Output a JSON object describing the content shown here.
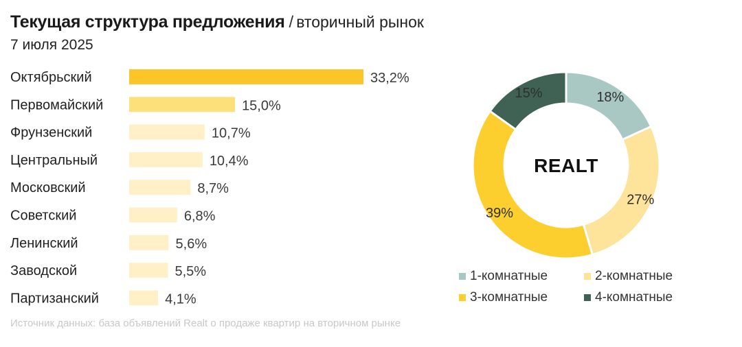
{
  "header": {
    "title": "Текущая структура предложения",
    "separator": "/",
    "subtitle": "вторичный рынок",
    "date": "7 июля 2025"
  },
  "chart_data": [
    {
      "type": "bar",
      "orientation": "horizontal",
      "categories": [
        "Октябрьский",
        "Первомайский",
        "Фрунзенский",
        "Центральный",
        "Московский",
        "Советский",
        "Ленинский",
        "Заводской",
        "Партизанский"
      ],
      "values": [
        33.2,
        15.0,
        10.7,
        10.4,
        8.7,
        6.8,
        5.6,
        5.5,
        4.1
      ],
      "value_labels": [
        "33,2%",
        "15,0%",
        "10,7%",
        "10,4%",
        "8,7%",
        "6,8%",
        "5,6%",
        "5,5%",
        "4,1%"
      ],
      "unit": "%",
      "colors": [
        "#fcc62b",
        "#fde07a",
        "#fff0c8",
        "#fff0c8",
        "#fff0c8",
        "#fff0c8",
        "#fff0c8",
        "#fff0c8",
        "#fff0c8"
      ]
    },
    {
      "type": "pie",
      "donut": true,
      "center_label": "REALT",
      "slices": [
        {
          "name": "1-комнатные",
          "value": 18,
          "label": "18%",
          "color": "#a9c8c4"
        },
        {
          "name": "2-комнатные",
          "value": 27,
          "label": "27%",
          "color": "#fee39a"
        },
        {
          "name": "3-комнатные",
          "value": 39,
          "label": "39%",
          "color": "#fccf2e"
        },
        {
          "name": "4-комнатные",
          "value": 15,
          "label": "15%",
          "color": "#3f6255"
        }
      ]
    }
  ],
  "legend": [
    {
      "label": "1-комнатные",
      "color": "#a9c8c4"
    },
    {
      "label": "2-комнатные",
      "color": "#fee39a"
    },
    {
      "label": "3-комнатные",
      "color": "#fccf2e"
    },
    {
      "label": "4-комнатные",
      "color": "#3f6255"
    }
  ],
  "footnote": "Источник данных: база объявлений Realt о продаже квартир на вторичном рынке"
}
